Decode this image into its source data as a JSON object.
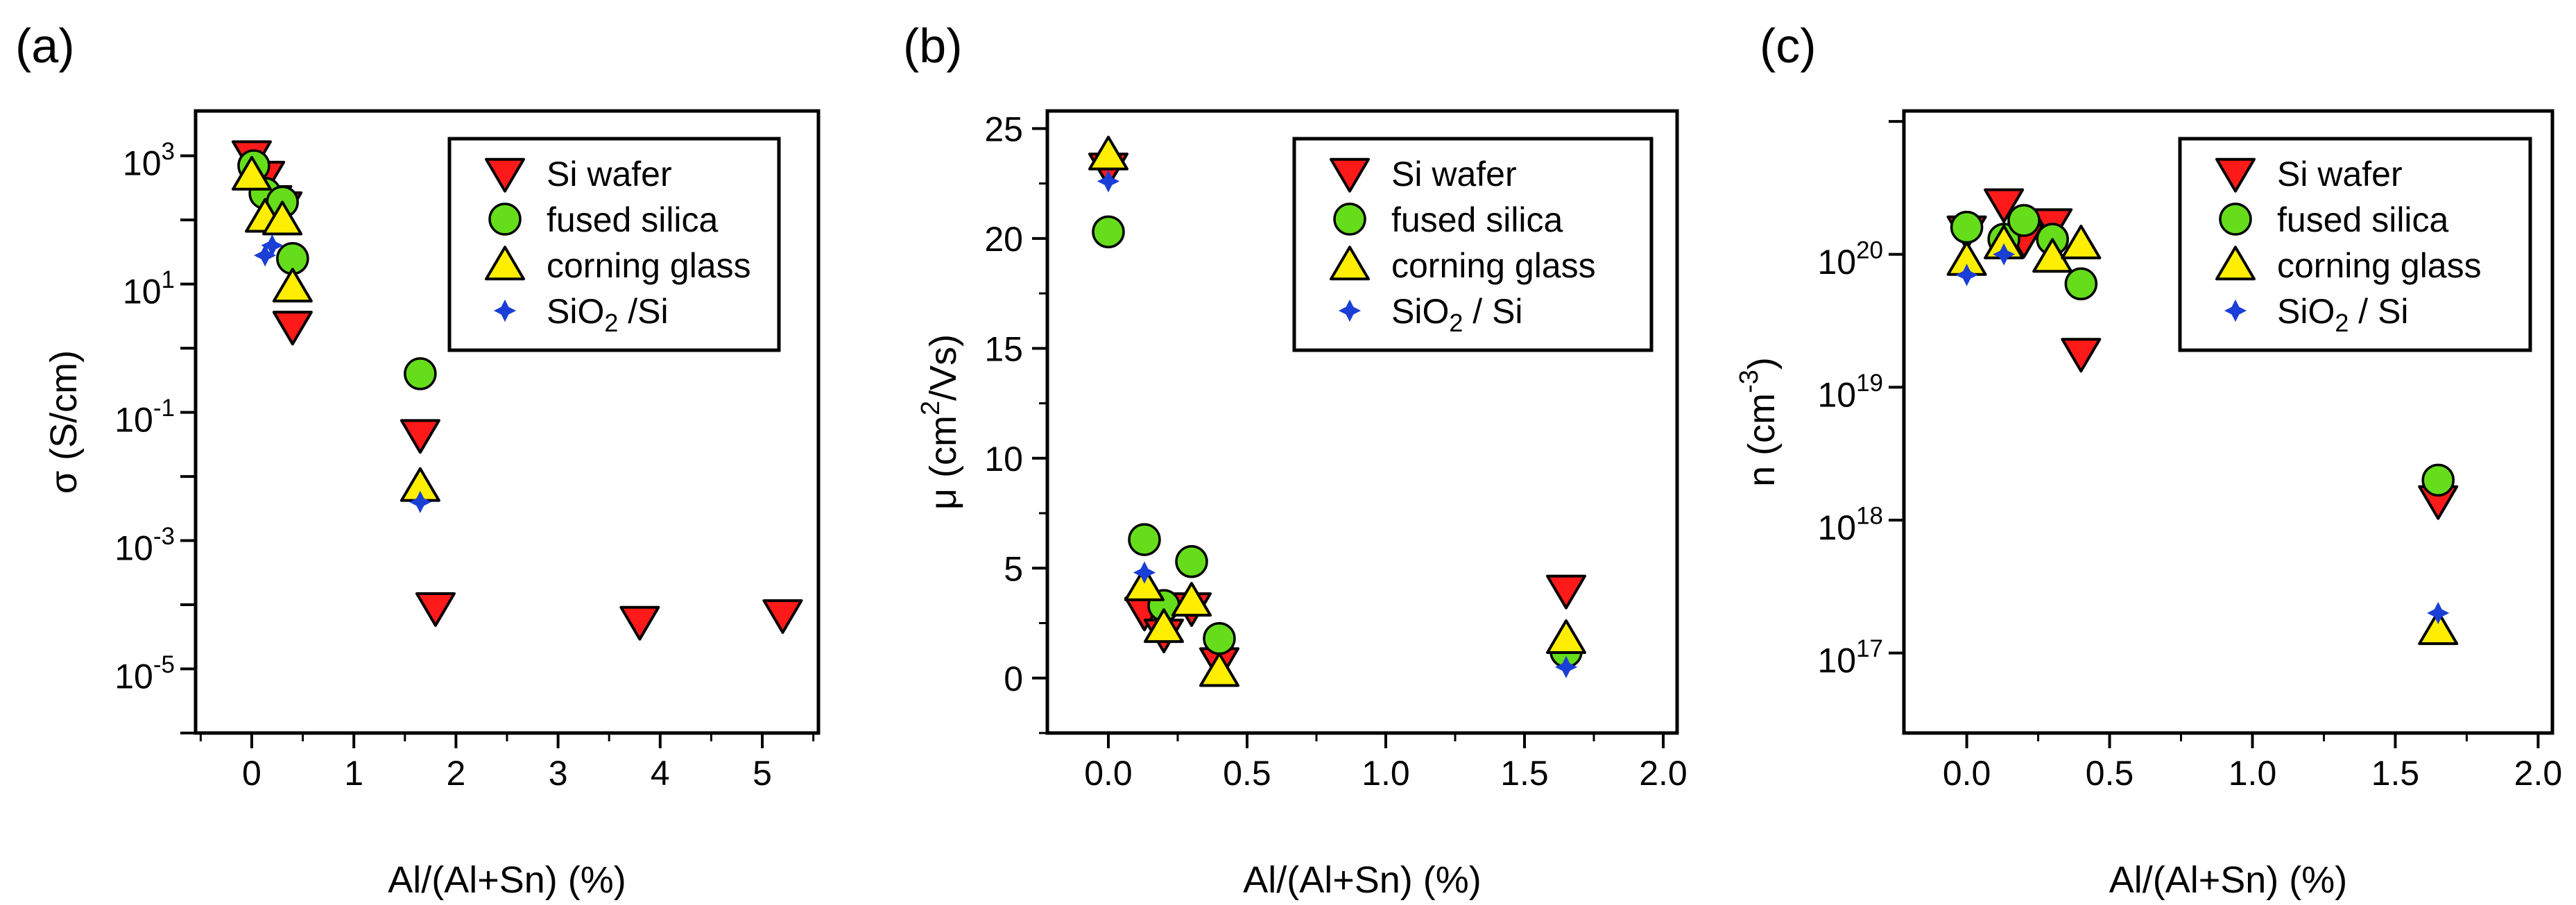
{
  "figure": {
    "panel_labels": [
      "(a)",
      "(b)",
      "(c)"
    ]
  },
  "colors": {
    "si_wafer": "#ff1a1a",
    "fused_silica": "#66dd1a",
    "corning_glass": "#ffee00",
    "sio2_si": "#1a3fd6",
    "outline": "#000000"
  },
  "chart_data": [
    {
      "id": "a",
      "type": "scatter",
      "panel": "(a)",
      "xlabel": "Al/(Al+Sn) (%)",
      "ylabel": "σ (S/cm)",
      "yscale": "log",
      "xlim": [
        -0.55,
        5.55
      ],
      "ylim": [
        1e-06,
        5000
      ],
      "xticks": [
        {
          "v": 0,
          "label": "0"
        },
        {
          "v": 1,
          "label": "1"
        },
        {
          "v": 2,
          "label": "2"
        },
        {
          "v": 3,
          "label": "3"
        },
        {
          "v": 4,
          "label": "4"
        },
        {
          "v": 5,
          "label": "5"
        }
      ],
      "yticks": [
        {
          "v": 1e-05,
          "base": "10",
          "exp": "-5"
        },
        {
          "v": 0.001,
          "base": "10",
          "exp": "-3"
        },
        {
          "v": 0.1,
          "base": "10",
          "exp": "-1"
        },
        {
          "v": 10,
          "base": "10",
          "exp": "1"
        },
        {
          "v": 1000,
          "base": "10",
          "exp": "3"
        }
      ],
      "legend": [
        "Si wafer",
        "fused silica",
        "corning glass",
        "SiO2 /Si"
      ],
      "legend_position": "top-right",
      "series": [
        {
          "name": "Si wafer",
          "marker": "triangle-down",
          "points": [
            [
              0,
              1000
            ],
            [
              0.13,
              480
            ],
            [
              0.2,
              200
            ],
            [
              0.3,
              160
            ],
            [
              0.4,
              2.2
            ],
            [
              1.65,
              0.045
            ],
            [
              1.8,
              9e-05
            ],
            [
              3.8,
              5.5e-05
            ],
            [
              5.2,
              7e-05
            ]
          ]
        },
        {
          "name": "fused silica",
          "marker": "circle",
          "points": [
            [
              0.02,
              700
            ],
            [
              0.13,
              260
            ],
            [
              0.3,
              190
            ],
            [
              0.4,
              25
            ],
            [
              1.65,
              0.4
            ]
          ]
        },
        {
          "name": "corning glass",
          "marker": "triangle-up",
          "points": [
            [
              0,
              500
            ],
            [
              0.13,
              110
            ],
            [
              0.3,
              100
            ],
            [
              0.4,
              9
            ],
            [
              1.65,
              0.007
            ]
          ]
        },
        {
          "name": "SiO2 /Si",
          "marker": "star",
          "points": [
            [
              0.13,
              28
            ],
            [
              0.2,
              40
            ],
            [
              1.65,
              0.004
            ]
          ]
        }
      ]
    },
    {
      "id": "b",
      "type": "scatter",
      "panel": "(b)",
      "xlabel": "Al/(Al+Sn) (%)",
      "ylabel": "μ (cm2/Vs)",
      "yscale": "linear",
      "xlim": [
        -0.22,
        2.05
      ],
      "ylim": [
        -2.5,
        25.8
      ],
      "xticks": [
        {
          "v": 0,
          "label": "0.0"
        },
        {
          "v": 0.5,
          "label": "0.5"
        },
        {
          "v": 1,
          "label": "1.0"
        },
        {
          "v": 1.5,
          "label": "1.5"
        },
        {
          "v": 2,
          "label": "2.0"
        }
      ],
      "yticks": [
        {
          "v": 0,
          "label": "0"
        },
        {
          "v": 5,
          "label": "5"
        },
        {
          "v": 10,
          "label": "10"
        },
        {
          "v": 15,
          "label": "15"
        },
        {
          "v": 20,
          "label": "20"
        },
        {
          "v": 25,
          "label": "25"
        }
      ],
      "legend": [
        "Si wafer",
        "fused silica",
        "corning glass",
        "SiO2 / Si"
      ],
      "legend_position": "top-right",
      "series": [
        {
          "name": "Si wafer",
          "marker": "triangle-down",
          "points": [
            [
              0,
              23.2
            ],
            [
              0.13,
              3
            ],
            [
              0.2,
              2
            ],
            [
              0.3,
              3.2
            ],
            [
              0.4,
              0.7
            ],
            [
              1.65,
              4
            ]
          ]
        },
        {
          "name": "fused silica",
          "marker": "circle",
          "points": [
            [
              0,
              20.3
            ],
            [
              0.13,
              6.3
            ],
            [
              0.2,
              3.3
            ],
            [
              0.3,
              5.3
            ],
            [
              0.4,
              1.8
            ],
            [
              1.65,
              1.2
            ]
          ]
        },
        {
          "name": "corning glass",
          "marker": "triangle-up",
          "points": [
            [
              0,
              23.8
            ],
            [
              0.13,
              4.2
            ],
            [
              0.2,
              2.3
            ],
            [
              0.3,
              3.5
            ],
            [
              0.4,
              0.3
            ],
            [
              1.65,
              1.8
            ]
          ]
        },
        {
          "name": "SiO2 / Si",
          "marker": "star",
          "points": [
            [
              0,
              22.6
            ],
            [
              0.13,
              4.8
            ],
            [
              1.65,
              0.5
            ]
          ]
        }
      ]
    },
    {
      "id": "c",
      "type": "scatter",
      "panel": "(c)",
      "xlabel": "Al/(Al+Sn) (%)",
      "ylabel": "n (cm-3)",
      "yscale": "log",
      "xlim": [
        -0.22,
        2.05
      ],
      "ylim": [
        2.5e+16,
        1.2e+21
      ],
      "xticks": [
        {
          "v": 0,
          "label": "0.0"
        },
        {
          "v": 0.5,
          "label": "0.5"
        },
        {
          "v": 1,
          "label": "1.0"
        },
        {
          "v": 1.5,
          "label": "1.5"
        },
        {
          "v": 2,
          "label": "2.0"
        }
      ],
      "yticks": [
        {
          "v": 1e+17,
          "base": "10",
          "exp": "17"
        },
        {
          "v": 1e+18,
          "base": "10",
          "exp": "18"
        },
        {
          "v": 1e+19,
          "base": "10",
          "exp": "19"
        },
        {
          "v": 1e+20,
          "base": "10",
          "exp": "20"
        }
      ],
      "legend": [
        "Si wafer",
        "fused silica",
        "corning glass",
        "SiO2 / Si"
      ],
      "legend_position": "top-right",
      "series": [
        {
          "name": "Si wafer",
          "marker": "triangle-down",
          "points": [
            [
              0,
              1.5e+20
            ],
            [
              0.13,
              2.4e+20
            ],
            [
              0.2,
              1.3e+20
            ],
            [
              0.3,
              1.7e+20
            ],
            [
              0.4,
              1.8e+19
            ],
            [
              1.65,
              1.4e+18
            ]
          ]
        },
        {
          "name": "fused silica",
          "marker": "circle",
          "points": [
            [
              0,
              1.6e+20
            ],
            [
              0.13,
              1.3e+20
            ],
            [
              0.2,
              1.8e+20
            ],
            [
              0.3,
              1.3e+20
            ],
            [
              0.4,
              6e+19
            ],
            [
              1.65,
              2e+18
            ]
          ]
        },
        {
          "name": "corning glass",
          "marker": "triangle-up",
          "points": [
            [
              0,
              9e+19
            ],
            [
              0.13,
              1.2e+20
            ],
            [
              0.3,
              9.5e+19
            ],
            [
              0.4,
              1.2e+20
            ],
            [
              1.65,
              1.5e+17
            ]
          ]
        },
        {
          "name": "SiO2 / Si",
          "marker": "star",
          "points": [
            [
              0,
              7e+19
            ],
            [
              0.13,
              1e+20
            ],
            [
              1.65,
              2e+17
            ]
          ]
        }
      ]
    }
  ]
}
